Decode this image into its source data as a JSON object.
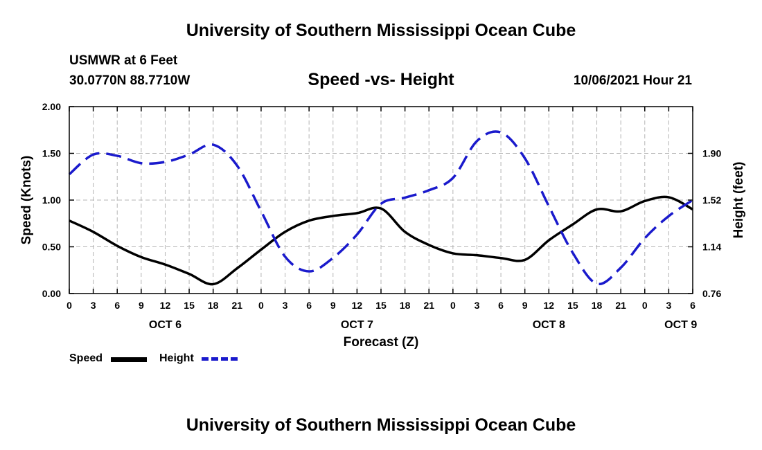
{
  "header": {
    "title": "University of Southern Mississippi Ocean Cube",
    "station": "USMWR at 6 Feet",
    "coords": "30.0770N  88.7710W",
    "datestamp": "10/06/2021 Hour 21"
  },
  "footer": {
    "title": "University of Southern Mississippi Ocean Cube"
  },
  "legend": {
    "speed_label": "Speed",
    "height_label": "Height"
  },
  "colors": {
    "speed": "#000000",
    "height": "#1a1acc",
    "grid": "#b4b4b4"
  },
  "chart_data": {
    "type": "line",
    "title": "Speed -vs- Height",
    "xlabel": "Forecast (Z)",
    "ylabel": "Speed (Knots)",
    "y2label": "Height (feet)",
    "x_range_hours": [
      0,
      78
    ],
    "ylim": [
      0,
      2
    ],
    "y2lim": [
      0.76,
      2.28
    ],
    "grid": true,
    "legend_position": "bottom-left",
    "x_ticks": [
      0,
      3,
      6,
      9,
      12,
      15,
      18,
      21,
      24,
      27,
      30,
      33,
      36,
      39,
      42,
      45,
      48,
      51,
      54,
      57,
      60,
      63,
      66,
      69,
      72,
      75,
      78
    ],
    "x_tick_labels": [
      "0",
      "3",
      "6",
      "9",
      "12",
      "15",
      "18",
      "21",
      "0",
      "3",
      "6",
      "9",
      "12",
      "15",
      "18",
      "21",
      "0",
      "3",
      "6",
      "9",
      "12",
      "15",
      "18",
      "21",
      "0",
      "3",
      "6"
    ],
    "day_labels": [
      {
        "hour": 12,
        "label": "OCT 6"
      },
      {
        "hour": 36,
        "label": "OCT 7"
      },
      {
        "hour": 60,
        "label": "OCT 8"
      },
      {
        "hour": 76.5,
        "label": "OCT 9"
      }
    ],
    "y_ticks": [
      0,
      0.5,
      1,
      1.5,
      2
    ],
    "y_tick_labels": [
      "0.00",
      "0.50",
      "1.00",
      "1.50",
      "2.00"
    ],
    "y2_ticks": [
      0.76,
      1.14,
      1.52,
      1.9
    ],
    "y2_tick_labels": [
      "0.76",
      "1.14",
      "1.52",
      "1.90"
    ],
    "series": [
      {
        "name": "Speed",
        "axis": "left",
        "style": "solid",
        "x": [
          0,
          3,
          6,
          9,
          12,
          15,
          18,
          21,
          24,
          27,
          30,
          33,
          36,
          39,
          42,
          45,
          48,
          51,
          54,
          57,
          60,
          63,
          66,
          69,
          72,
          75,
          78
        ],
        "values": [
          0.78,
          0.66,
          0.51,
          0.39,
          0.31,
          0.21,
          0.1,
          0.27,
          0.47,
          0.66,
          0.78,
          0.83,
          0.86,
          0.91,
          0.66,
          0.52,
          0.43,
          0.41,
          0.38,
          0.36,
          0.57,
          0.74,
          0.9,
          0.88,
          0.99,
          1.03,
          0.9
        ]
      },
      {
        "name": "Height",
        "axis": "right",
        "style": "dashed",
        "x": [
          0,
          3,
          6,
          9,
          12,
          15,
          18,
          21,
          24,
          27,
          30,
          33,
          36,
          39,
          42,
          45,
          48,
          51,
          54,
          57,
          60,
          63,
          66,
          69,
          72,
          75,
          78
        ],
        "values": [
          1.73,
          1.89,
          1.88,
          1.82,
          1.83,
          1.89,
          1.97,
          1.8,
          1.43,
          1.06,
          0.94,
          1.05,
          1.24,
          1.49,
          1.54,
          1.6,
          1.7,
          2.0,
          2.07,
          1.86,
          1.47,
          1.09,
          0.84,
          0.97,
          1.21,
          1.39,
          1.52
        ]
      }
    ]
  }
}
